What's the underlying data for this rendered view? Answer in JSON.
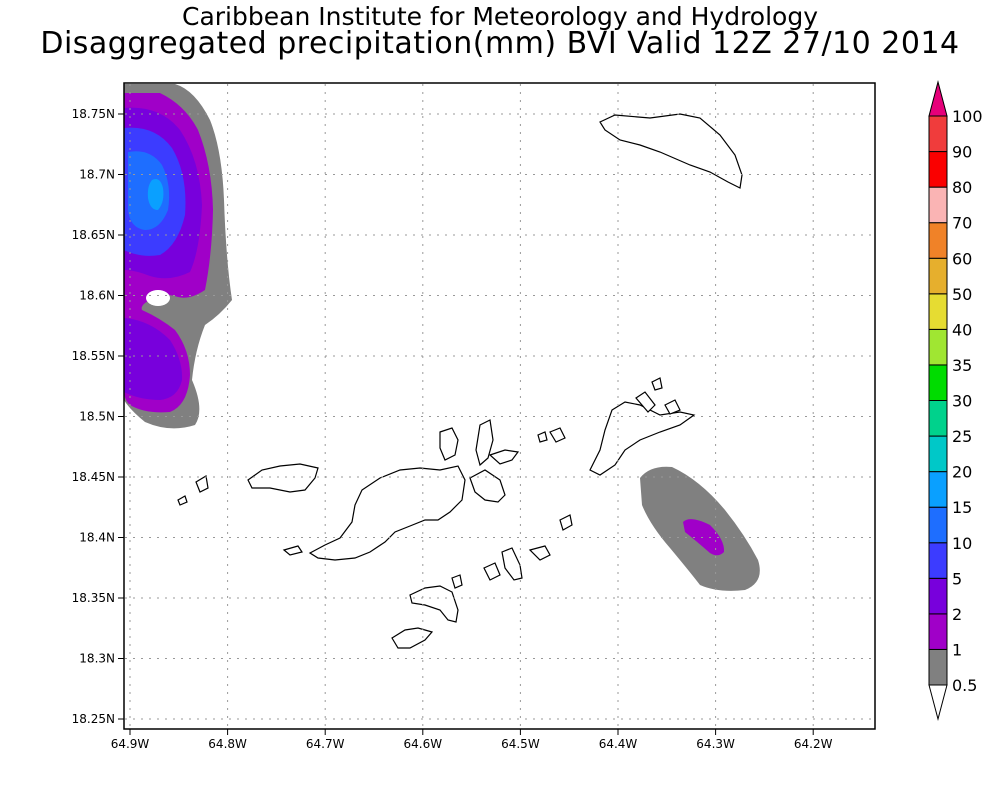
{
  "header": {
    "institute": "Caribbean Institute for Meteorology and Hydrology",
    "product": "Disaggregated precipitation(mm) BVI Valid 12Z 27/10 2014"
  },
  "map": {
    "region": "British Virgin Islands",
    "lon_ticks": [
      "64.9W",
      "64.8W",
      "64.7W",
      "64.6W",
      "64.5W",
      "64.4W",
      "64.3W",
      "64.2W"
    ],
    "lat_ticks": [
      "18.75N",
      "18.7N",
      "18.65N",
      "18.6N",
      "18.55N",
      "18.5N",
      "18.45N",
      "18.4N",
      "18.35N",
      "18.3N",
      "18.25N"
    ],
    "grid": true,
    "features": [
      "Anegada",
      "Tortola",
      "Virgin Gorda",
      "Jost Van Dyke",
      "Norman Island"
    ]
  },
  "legend": {
    "levels": [
      "0.5",
      "1",
      "2",
      "5",
      "10",
      "15",
      "20",
      "25",
      "30",
      "35",
      "40",
      "50",
      "60",
      "70",
      "80",
      "90",
      "100"
    ],
    "colors": [
      "#808080",
      "#a000c8",
      "#7800dc",
      "#3c3cff",
      "#1e6eff",
      "#0aa0ff",
      "#00c8c8",
      "#00d28c",
      "#00dc00",
      "#a0e632",
      "#e6dc32",
      "#e6af2d",
      "#f08228",
      "#fab4b4",
      "#fa0000",
      "#f03c3c",
      "#e6007a"
    ]
  }
}
